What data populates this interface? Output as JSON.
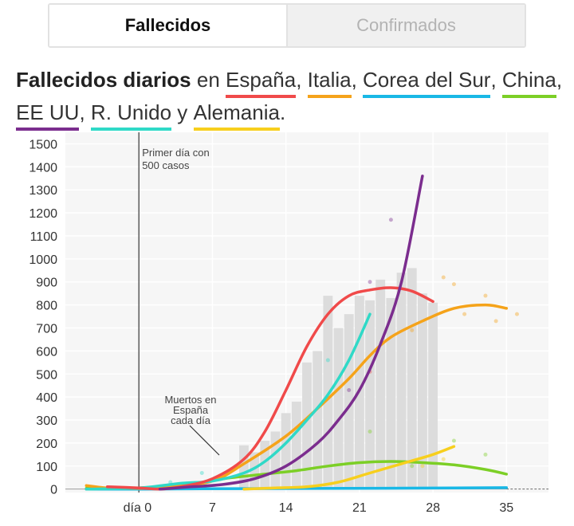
{
  "tabs": [
    {
      "label": "Fallecidos",
      "active": true
    },
    {
      "label": "Confirmados",
      "active": false
    }
  ],
  "headline": {
    "title": "Fallecidos diarios",
    "en": " en ",
    "sep": ", ",
    "y": " y ",
    "end": ".",
    "countries": [
      {
        "name": "España",
        "color": "#f04a4a"
      },
      {
        "name": "Italia",
        "color": "#f5a31a"
      },
      {
        "name": "Corea del Sur",
        "color": "#19b8e6"
      },
      {
        "name": "China",
        "color": "#7ccf26"
      },
      {
        "name": "EE UU",
        "color": "#7b2d8e"
      },
      {
        "name": "R. Unido",
        "color": "#2fd9c7"
      },
      {
        "name": "Alemania",
        "color": "#f7cf1d"
      }
    ]
  },
  "chart_data": {
    "type": "line",
    "xlim": [
      -7,
      39
    ],
    "ylim": [
      -15,
      1550
    ],
    "yticks": [
      0,
      100,
      200,
      300,
      400,
      500,
      600,
      700,
      800,
      900,
      1000,
      1100,
      1200,
      1300,
      1400,
      1500
    ],
    "xticks": [
      {
        "v": 0,
        "label": "día 0"
      },
      {
        "v": 7,
        "label": "7"
      },
      {
        "v": 14,
        "label": "14"
      },
      {
        "v": 21,
        "label": "21"
      },
      {
        "v": 28,
        "label": "28"
      },
      {
        "v": 35,
        "label": "35"
      }
    ],
    "annotations": {
      "day0_line": [
        "Primer día con",
        "500 casos"
      ],
      "bars_label": [
        "Muertos en",
        "España",
        "cada día"
      ]
    },
    "bars": {
      "name": "España",
      "x": [
        10,
        11,
        12,
        13,
        14,
        15,
        16,
        17,
        18,
        19,
        20,
        21,
        22,
        23,
        24,
        25,
        26,
        27,
        28
      ],
      "values": [
        190,
        160,
        210,
        250,
        330,
        380,
        550,
        600,
        840,
        700,
        760,
        840,
        820,
        910,
        830,
        940,
        960,
        850,
        810
      ]
    },
    "series": [
      {
        "name": "España",
        "color": "#f04a4a",
        "points": [
          [
            -3,
            10
          ],
          [
            0,
            5
          ],
          [
            2,
            0
          ],
          [
            4,
            10
          ],
          [
            7,
            45
          ],
          [
            10,
            130
          ],
          [
            12,
            250
          ],
          [
            14,
            430
          ],
          [
            16,
            620
          ],
          [
            18,
            760
          ],
          [
            20,
            840
          ],
          [
            22,
            865
          ],
          [
            24,
            875
          ],
          [
            26,
            860
          ],
          [
            28,
            815
          ]
        ]
      },
      {
        "name": "Italia",
        "color": "#f5a31a",
        "points": [
          [
            -5,
            15
          ],
          [
            -3,
            5
          ],
          [
            0,
            3
          ],
          [
            3,
            10
          ],
          [
            7,
            35
          ],
          [
            10,
            110
          ],
          [
            14,
            230
          ],
          [
            17,
            350
          ],
          [
            20,
            480
          ],
          [
            22,
            580
          ],
          [
            24,
            660
          ],
          [
            27,
            730
          ],
          [
            30,
            785
          ],
          [
            33,
            800
          ],
          [
            35,
            785
          ]
        ]
      },
      {
        "name": "Corea del Sur",
        "color": "#19b8e6",
        "points": [
          [
            -5,
            0
          ],
          [
            0,
            0
          ],
          [
            10,
            2
          ],
          [
            20,
            3
          ],
          [
            30,
            5
          ],
          [
            35,
            6
          ]
        ]
      },
      {
        "name": "China",
        "color": "#7ccf26",
        "points": [
          [
            -5,
            3
          ],
          [
            0,
            5
          ],
          [
            5,
            20
          ],
          [
            8,
            45
          ],
          [
            12,
            65
          ],
          [
            15,
            80
          ],
          [
            18,
            100
          ],
          [
            21,
            115
          ],
          [
            24,
            120
          ],
          [
            27,
            115
          ],
          [
            30,
            105
          ],
          [
            33,
            85
          ],
          [
            35,
            65
          ]
        ]
      },
      {
        "name": "EE UU",
        "color": "#7b2d8e",
        "points": [
          [
            2,
            0
          ],
          [
            5,
            10
          ],
          [
            8,
            20
          ],
          [
            11,
            45
          ],
          [
            14,
            100
          ],
          [
            17,
            200
          ],
          [
            19,
            300
          ],
          [
            21,
            430
          ],
          [
            23,
            630
          ],
          [
            25,
            900
          ],
          [
            27,
            1360
          ]
        ]
      },
      {
        "name": "R. Unido",
        "color": "#2fd9c7",
        "points": [
          [
            -5,
            0
          ],
          [
            0,
            5
          ],
          [
            4,
            25
          ],
          [
            7,
            35
          ],
          [
            10,
            70
          ],
          [
            12,
            120
          ],
          [
            14,
            200
          ],
          [
            16,
            300
          ],
          [
            18,
            410
          ],
          [
            20,
            560
          ],
          [
            22,
            760
          ]
        ]
      },
      {
        "name": "Alemania",
        "color": "#f7cf1d",
        "points": [
          [
            10,
            0
          ],
          [
            13,
            5
          ],
          [
            16,
            10
          ],
          [
            19,
            30
          ],
          [
            22,
            70
          ],
          [
            25,
            110
          ],
          [
            28,
            150
          ],
          [
            30,
            185
          ]
        ]
      }
    ],
    "scatter": [
      {
        "color": "#7b2d8e",
        "points": [
          [
            24,
            1170
          ],
          [
            22,
            900
          ],
          [
            20,
            430
          ]
        ]
      },
      {
        "color": "#f5a31a",
        "points": [
          [
            29,
            920
          ],
          [
            30,
            890
          ],
          [
            31,
            760
          ],
          [
            33,
            840
          ],
          [
            34,
            730
          ],
          [
            36,
            760
          ],
          [
            26,
            690
          ]
        ]
      },
      {
        "color": "#f04a4a",
        "points": [
          [
            22,
            510
          ]
        ]
      },
      {
        "color": "#7ccf26",
        "points": [
          [
            30,
            210
          ],
          [
            33,
            150
          ],
          [
            22,
            250
          ],
          [
            26,
            100
          ]
        ]
      },
      {
        "color": "#2fd9c7",
        "points": [
          [
            3,
            30
          ],
          [
            6,
            70
          ],
          [
            18,
            560
          ]
        ]
      },
      {
        "color": "#f7cf1d",
        "points": [
          [
            27,
            100
          ],
          [
            29,
            130
          ]
        ]
      }
    ]
  }
}
